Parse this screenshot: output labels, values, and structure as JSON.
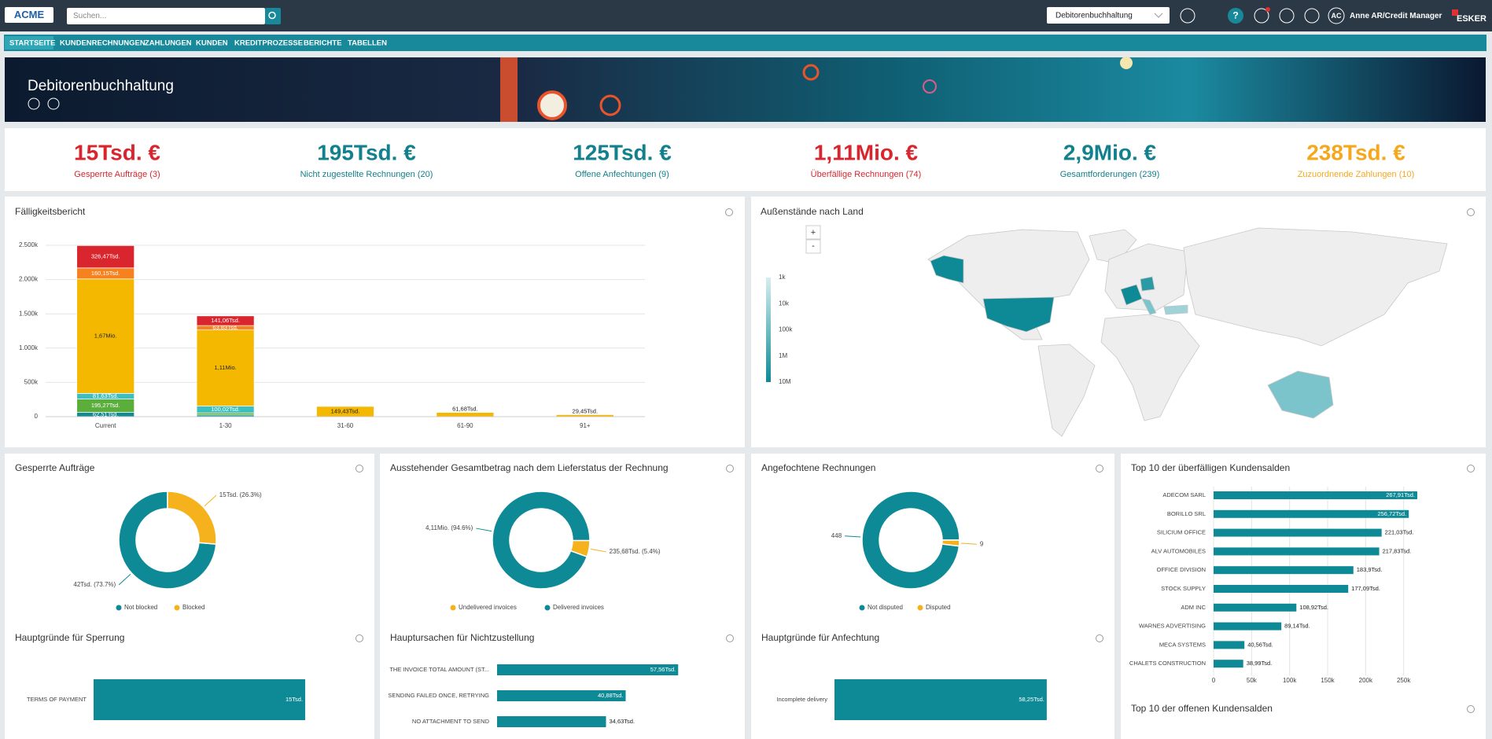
{
  "header": {
    "logo": "ACME",
    "search_placeholder": "Suchen...",
    "role_select": "Debitorenbuchhaltung",
    "user_initials": "AC",
    "user_name": "Anne AR/Credit Manager",
    "brand": "ESKER"
  },
  "nav": [
    "STARTSEITE",
    "KUNDENRECHNUNGEN",
    "ZAHLUNGEN",
    "KUNDEN",
    "KREDITPROZESSE",
    "BERICHTE",
    "TABELLEN"
  ],
  "banner": {
    "title": "Debitorenbuchhaltung"
  },
  "kpis": [
    {
      "value": "15Tsd. €",
      "label": "Gesperrte Aufträge (3)",
      "color": "#d9262e"
    },
    {
      "value": "195Tsd. €",
      "label": "Nicht zugestellte Rechnungen (20)",
      "color": "#12808d"
    },
    {
      "value": "125Tsd. €",
      "label": "Offene Anfechtungen (9)",
      "color": "#12808d"
    },
    {
      "value": "1,11Mio. €",
      "label": "Überfällige Rechnungen (74)",
      "color": "#d9262e"
    },
    {
      "value": "2,9Mio. €",
      "label": "Gesamtforderungen (239)",
      "color": "#12808d"
    },
    {
      "value": "238Tsd. €",
      "label": "Zuzuordnende Zahlungen (10)",
      "color": "#f5a81c"
    }
  ],
  "extra_panel": {
    "title": "Top 10 der offenen Kundensalden"
  },
  "chart_data": [
    {
      "type": "stacked_bar",
      "title": "Fälligkeitsbericht",
      "categories": [
        "Current",
        "1-30",
        "31-60",
        "61-90",
        "91+"
      ],
      "series": [
        {
          "color": "#0e8a96",
          "values": [
            62.51,
            25,
            0,
            0,
            0
          ],
          "value_labels": [
            "62,51Tsd.",
            null,
            null,
            null,
            null
          ]
        },
        {
          "color": "#5cae3c",
          "values": [
            195.27,
            30,
            0,
            0,
            0
          ],
          "value_labels": [
            "195,27Tsd.",
            null,
            null,
            null,
            null
          ]
        },
        {
          "color": "#3bbfbf",
          "values": [
            81.63,
            100.02,
            0,
            0,
            0
          ],
          "value_labels": [
            "81,63Tsd.",
            "100,02Tsd.",
            null,
            null,
            null
          ]
        },
        {
          "color": "#f5b800",
          "values": [
            1670,
            1110,
            149.43,
            61.68,
            29.45
          ],
          "value_labels": [
            "1,67Mio.",
            "1,11Mio.",
            "149,43Tsd.",
            "61,68Tsd.",
            "29,45Tsd."
          ]
        },
        {
          "color": "#f5821f",
          "values": [
            160.15,
            63.83,
            0,
            0,
            0
          ],
          "value_labels": [
            "160,15Tsd.",
            "63,83Tsd.",
            null,
            null,
            null
          ]
        },
        {
          "color": "#d9262e",
          "values": [
            326.47,
            141.06,
            0,
            0,
            0
          ],
          "value_labels": [
            "326,47Tsd.",
            "141,06Tsd.",
            null,
            null,
            null
          ]
        }
      ],
      "ylim": [
        0,
        2500
      ],
      "yticks": [
        0,
        {
          "value": 500,
          "label": "500k"
        },
        {
          "value": 1000,
          "label": "1.000k"
        },
        {
          "value": 1500,
          "label": "1.500k"
        },
        {
          "value": 2000,
          "label": "2.000k"
        },
        {
          "value": 2500,
          "label": "2.500k"
        }
      ],
      "grid": true
    },
    {
      "type": "map",
      "title": "Außenstände nach Land",
      "zoom_in": "+",
      "zoom_out": "-",
      "legend_labels": [
        "1k",
        "10k",
        "100k",
        "1M",
        "10M"
      ]
    },
    {
      "type": "donut",
      "title": "Gesperrte Aufträge",
      "series": [
        {
          "name": "Not blocked",
          "color": "#0e8a96"
        },
        {
          "name": "Blocked",
          "color": "#f5b21c"
        }
      ],
      "values": [
        42,
        15
      ],
      "value_labels": [
        "42Tsd. (73.7%)",
        "15Tsd. (26.3%)"
      ]
    },
    {
      "type": "donut",
      "title": "Ausstehender Gesamtbetrag nach dem Lieferstatus der Rechnung",
      "series": [
        {
          "name": "Undelivered invoices",
          "color": "#f5b21c"
        },
        {
          "name": "Delivered invoices",
          "color": "#0e8a96"
        }
      ],
      "values": [
        235.68,
        4110
      ],
      "value_labels": [
        "235,68Tsd. (5.4%)",
        "4,11Mio. (94.6%)"
      ]
    },
    {
      "type": "donut",
      "title": "Angefochtene Rechnungen",
      "series": [
        {
          "name": "Not disputed",
          "color": "#0e8a96"
        },
        {
          "name": "Disputed",
          "color": "#f5b21c"
        }
      ],
      "values": [
        448,
        9
      ]
    },
    {
      "type": "hbar",
      "title": "Top 10 der überfälligen Kundensalden",
      "color": "#0e8a96",
      "categories": [
        "ADECOM SARL",
        "BORILLO SRL",
        "SILICIUM OFFICE",
        "ALV AUTOMOBILES",
        "OFFICE DIVISION",
        "STOCK SUPPLY",
        "ADM INC",
        "WARNES ADVERTISING",
        "MECA SYSTEMS",
        "CHALETS CONSTRUCTION"
      ],
      "values": [
        267.91,
        256.72,
        221.03,
        217.83,
        183.9,
        177.09,
        108.92,
        89.14,
        40.56,
        38.99
      ],
      "value_labels": [
        "267,91Tsd.",
        "256,72Tsd.",
        "221,03Tsd.",
        "217,83Tsd.",
        "183,9Tsd.",
        "177,09Tsd.",
        "108,92Tsd.",
        "89,14Tsd.",
        "40,56Tsd.",
        "38,99Tsd."
      ],
      "xlim": [
        0,
        270
      ],
      "xticks": [
        0,
        {
          "value": 50,
          "label": "50k"
        },
        {
          "value": 100,
          "label": "100k"
        },
        {
          "value": 150,
          "label": "150k"
        },
        {
          "value": 200,
          "label": "200k"
        },
        {
          "value": 250,
          "label": "250k"
        }
      ],
      "grid": true
    },
    {
      "type": "hbar",
      "title": "Hauptgründe für Sperrung",
      "color": "#0e8a96",
      "categories": [
        "TERMS OF PAYMENT"
      ],
      "values": [
        15
      ],
      "value_labels": [
        "15Tsd."
      ],
      "xlim": [
        0,
        16
      ]
    },
    {
      "type": "hbar",
      "title": "Hauptursachen für Nichtzustellung",
      "color": "#0e8a96",
      "categories": [
        "THE INVOICE TOTAL AMOUNT (ST...",
        "SENDING FAILED ONCE, RETRYING",
        "NO ATTACHMENT TO SEND"
      ],
      "values": [
        57.56,
        40.88,
        34.63
      ],
      "value_labels": [
        "57,56Tsd.",
        "40,88Tsd.",
        "34,63Tsd."
      ],
      "xlim": [
        0,
        60
      ]
    },
    {
      "type": "hbar",
      "title": "Hauptgründe für Anfechtung",
      "color": "#0e8a96",
      "categories": [
        "Incomplete delivery"
      ],
      "values": [
        58.25
      ],
      "value_labels": [
        "58,25Tsd."
      ],
      "xlim": [
        0,
        60
      ]
    }
  ]
}
